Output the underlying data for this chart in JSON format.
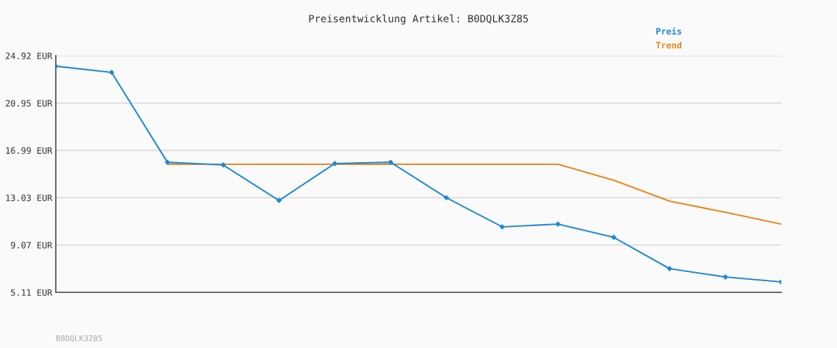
{
  "chart_data": {
    "type": "line",
    "title": "Preisentwicklung Artikel: B0DQLK3Z85",
    "categories": [
      null,
      null,
      null,
      null,
      null,
      null,
      null,
      null,
      null,
      null,
      null,
      null,
      null,
      null
    ],
    "series": [
      {
        "name": "Preis",
        "color": "#1e88d2",
        "marker": "diamond",
        "values": [
          24.04,
          23.52,
          16.0,
          15.77,
          12.8,
          15.89,
          16.0,
          13.03,
          10.59,
          10.82,
          9.71,
          7.09,
          6.39,
          5.98
        ]
      },
      {
        "name": "Trend",
        "color": "#e8861a",
        "marker": "none",
        "values": [
          null,
          null,
          15.83,
          15.83,
          15.83,
          15.83,
          15.83,
          15.83,
          15.83,
          15.83,
          14.49,
          12.74,
          11.81,
          10.82
        ]
      }
    ],
    "ylim": [
      5.11,
      24.92
    ],
    "yticks": [
      {
        "value": 5.11,
        "label": "5.11 EUR"
      },
      {
        "value": 9.07,
        "label": "9.07 EUR"
      },
      {
        "value": 13.03,
        "label": "13.03 EUR"
      },
      {
        "value": 16.99,
        "label": "16.99 EUR"
      },
      {
        "value": 20.95,
        "label": "20.95 EUR"
      },
      {
        "value": 24.92,
        "label": "24.92 EUR"
      }
    ],
    "grid": "y",
    "legend": "top right",
    "line_style": "solid",
    "annotations": [
      "B0DQLK3Z85"
    ]
  }
}
